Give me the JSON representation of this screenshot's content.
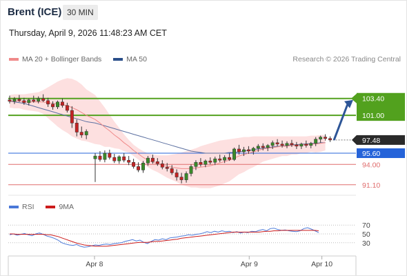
{
  "header": {
    "title": "Brent (ICE)",
    "timeframe": "30 MIN",
    "datetime": "Thursday, April 9, 2026 11:48:23 AM CET"
  },
  "legend": {
    "items": [
      {
        "label": "MA 20 + Bollinger Bands",
        "color": "#f08a8a"
      },
      {
        "label": "MA 50",
        "color": "#2b4f8a"
      }
    ],
    "credit": "Research © 2026 Trading Central"
  },
  "chart_data": {
    "type": "line",
    "price": {
      "ylim": [
        89.6,
        107.9
      ],
      "current_price": {
        "value": 97.48,
        "label": "97.48",
        "color": "#2a2a2a"
      },
      "levels": [
        {
          "value": 103.4,
          "label": "103.40",
          "kind": "resistance",
          "color": "#52a11e"
        },
        {
          "value": 101.0,
          "label": "101.00",
          "kind": "resistance",
          "color": "#52a11e"
        },
        {
          "value": 95.6,
          "label": "95.60",
          "kind": "pivot",
          "color": "#2563d9"
        },
        {
          "value": 94.0,
          "label": "94.00",
          "kind": "support",
          "color": "#e06d6d"
        },
        {
          "value": 91.1,
          "label": "91.10",
          "kind": "support",
          "color": "#e06d6d"
        }
      ],
      "candles": [
        {
          "o": 103.2,
          "h": 103.8,
          "l": 102.7,
          "c": 103.0
        },
        {
          "o": 103.0,
          "h": 103.6,
          "l": 102.6,
          "c": 103.3
        },
        {
          "o": 103.3,
          "h": 103.9,
          "l": 102.9,
          "c": 103.1
        },
        {
          "o": 103.1,
          "h": 103.5,
          "l": 102.5,
          "c": 102.8
        },
        {
          "o": 102.8,
          "h": 103.4,
          "l": 102.4,
          "c": 103.2
        },
        {
          "o": 103.2,
          "h": 103.8,
          "l": 102.8,
          "c": 103.0
        },
        {
          "o": 103.0,
          "h": 103.7,
          "l": 102.7,
          "c": 103.4
        },
        {
          "o": 103.4,
          "h": 104.0,
          "l": 102.9,
          "c": 103.1
        },
        {
          "o": 103.1,
          "h": 103.5,
          "l": 102.2,
          "c": 102.6
        },
        {
          "o": 102.6,
          "h": 103.0,
          "l": 101.8,
          "c": 102.2
        },
        {
          "o": 102.2,
          "h": 103.1,
          "l": 101.9,
          "c": 102.9
        },
        {
          "o": 102.9,
          "h": 103.4,
          "l": 102.1,
          "c": 102.4
        },
        {
          "o": 102.4,
          "h": 102.8,
          "l": 101.4,
          "c": 101.7
        },
        {
          "o": 101.7,
          "h": 102.3,
          "l": 99.2,
          "c": 99.9
        },
        {
          "o": 99.9,
          "h": 100.4,
          "l": 98.0,
          "c": 98.6
        },
        {
          "o": 98.6,
          "h": 99.4,
          "l": 97.8,
          "c": 98.2
        },
        {
          "o": 98.2,
          "h": 99.0,
          "l": 97.6,
          "c": 98.7
        },
        {
          "o": 94.8,
          "h": 95.6,
          "l": 91.5,
          "c": 95.2
        },
        {
          "o": 95.2,
          "h": 95.9,
          "l": 94.4,
          "c": 94.7
        },
        {
          "o": 94.7,
          "h": 96.0,
          "l": 94.3,
          "c": 95.6
        },
        {
          "o": 95.6,
          "h": 96.1,
          "l": 94.7,
          "c": 95.0
        },
        {
          "o": 95.0,
          "h": 95.5,
          "l": 94.2,
          "c": 94.5
        },
        {
          "o": 94.5,
          "h": 95.3,
          "l": 94.1,
          "c": 95.1
        },
        {
          "o": 95.1,
          "h": 95.6,
          "l": 94.3,
          "c": 94.6
        },
        {
          "o": 94.6,
          "h": 95.2,
          "l": 93.9,
          "c": 94.3
        },
        {
          "o": 94.3,
          "h": 94.8,
          "l": 93.4,
          "c": 93.7
        },
        {
          "o": 93.7,
          "h": 94.3,
          "l": 92.9,
          "c": 93.2
        },
        {
          "o": 93.2,
          "h": 94.5,
          "l": 92.8,
          "c": 94.2
        },
        {
          "o": 94.2,
          "h": 95.2,
          "l": 93.8,
          "c": 94.9
        },
        {
          "o": 94.9,
          "h": 95.4,
          "l": 94.1,
          "c": 94.4
        },
        {
          "o": 94.4,
          "h": 94.9,
          "l": 93.8,
          "c": 94.1
        },
        {
          "o": 94.1,
          "h": 94.6,
          "l": 93.3,
          "c": 93.6
        },
        {
          "o": 93.6,
          "h": 94.2,
          "l": 93.0,
          "c": 93.4
        },
        {
          "o": 93.4,
          "h": 93.9,
          "l": 92.5,
          "c": 92.8
        },
        {
          "o": 92.8,
          "h": 93.3,
          "l": 91.7,
          "c": 92.2
        },
        {
          "o": 92.2,
          "h": 92.8,
          "l": 91.3,
          "c": 91.8
        },
        {
          "o": 91.8,
          "h": 93.0,
          "l": 91.4,
          "c": 92.7
        },
        {
          "o": 92.7,
          "h": 94.0,
          "l": 92.3,
          "c": 93.7
        },
        {
          "o": 93.7,
          "h": 94.6,
          "l": 93.2,
          "c": 94.3
        },
        {
          "o": 94.3,
          "h": 94.9,
          "l": 93.7,
          "c": 94.0
        },
        {
          "o": 94.0,
          "h": 94.7,
          "l": 93.6,
          "c": 94.5
        },
        {
          "o": 94.5,
          "h": 95.0,
          "l": 94.0,
          "c": 94.3
        },
        {
          "o": 94.3,
          "h": 95.1,
          "l": 93.9,
          "c": 94.8
        },
        {
          "o": 94.8,
          "h": 95.4,
          "l": 94.3,
          "c": 94.6
        },
        {
          "o": 94.6,
          "h": 95.3,
          "l": 94.2,
          "c": 95.0
        },
        {
          "o": 95.0,
          "h": 95.6,
          "l": 94.5,
          "c": 94.7
        },
        {
          "o": 94.7,
          "h": 96.4,
          "l": 94.5,
          "c": 96.2
        },
        {
          "o": 96.2,
          "h": 96.8,
          "l": 95.4,
          "c": 95.8
        },
        {
          "o": 95.8,
          "h": 96.5,
          "l": 95.2,
          "c": 96.1
        },
        {
          "o": 96.1,
          "h": 96.6,
          "l": 95.5,
          "c": 95.9
        },
        {
          "o": 95.9,
          "h": 96.5,
          "l": 95.4,
          "c": 96.3
        },
        {
          "o": 96.3,
          "h": 96.9,
          "l": 95.8,
          "c": 96.6
        },
        {
          "o": 96.6,
          "h": 97.0,
          "l": 96.0,
          "c": 96.4
        },
        {
          "o": 96.4,
          "h": 96.9,
          "l": 95.9,
          "c": 96.7
        },
        {
          "o": 96.7,
          "h": 97.4,
          "l": 96.2,
          "c": 97.1
        },
        {
          "o": 97.1,
          "h": 97.6,
          "l": 96.6,
          "c": 96.9
        },
        {
          "o": 96.9,
          "h": 97.4,
          "l": 96.4,
          "c": 96.7
        },
        {
          "o": 96.7,
          "h": 97.3,
          "l": 96.3,
          "c": 97.0
        },
        {
          "o": 97.0,
          "h": 97.5,
          "l": 96.5,
          "c": 96.8
        },
        {
          "o": 96.8,
          "h": 97.2,
          "l": 96.2,
          "c": 96.6
        },
        {
          "o": 96.6,
          "h": 97.1,
          "l": 96.2,
          "c": 96.9
        },
        {
          "o": 96.9,
          "h": 97.4,
          "l": 96.4,
          "c": 96.7
        },
        {
          "o": 96.7,
          "h": 97.2,
          "l": 96.3,
          "c": 97.0
        },
        {
          "o": 97.0,
          "h": 97.9,
          "l": 96.6,
          "c": 97.6
        },
        {
          "o": 97.6,
          "h": 98.1,
          "l": 97.1,
          "c": 97.9
        },
        {
          "o": 97.9,
          "h": 98.3,
          "l": 97.4,
          "c": 97.7
        },
        {
          "o": 97.7,
          "h": 98.0,
          "l": 97.2,
          "c": 97.48
        }
      ],
      "ma20": [
        103.0,
        103.0,
        103.0,
        102.9,
        102.9,
        102.9,
        102.9,
        102.9,
        102.8,
        102.7,
        102.6,
        102.5,
        102.4,
        102.1,
        101.8,
        101.4,
        101.0,
        100.4,
        99.9,
        99.3,
        98.8,
        98.2,
        97.7,
        97.1,
        96.6,
        96.0,
        95.5,
        95.0,
        94.6,
        94.3,
        94.1,
        93.9,
        93.7,
        93.6,
        93.5,
        93.4,
        93.4,
        93.4,
        93.5,
        93.6,
        93.7,
        93.8,
        94.0,
        94.2,
        94.4,
        94.6,
        94.9,
        95.2,
        95.4,
        95.6,
        95.8,
        96.0,
        96.2,
        96.3,
        96.4,
        96.5,
        96.6,
        96.6,
        96.7,
        96.7,
        96.8,
        96.8,
        96.9,
        96.9,
        97.0,
        97.1
      ],
      "ma50": [
        103.0,
        102.9,
        102.8,
        102.7,
        102.5,
        102.3,
        102.1,
        101.9,
        101.7,
        101.5,
        101.3,
        101.1,
        100.9,
        100.7,
        100.5,
        100.3,
        100.1,
        99.9,
        99.7,
        99.5,
        99.3,
        99.1,
        98.9,
        98.7,
        98.5,
        98.3,
        98.1,
        97.9,
        97.7,
        97.5,
        97.3,
        97.1,
        96.9,
        96.7,
        96.5,
        96.3,
        96.1,
        95.9,
        95.8,
        95.7,
        95.6,
        95.6,
        95.6,
        95.6,
        95.6,
        95.7,
        95.7,
        95.8,
        95.9,
        96.0,
        96.1,
        96.2,
        96.3,
        96.4,
        96.5,
        96.6,
        96.6,
        96.7,
        96.8,
        96.8,
        96.9,
        96.9,
        97.0,
        97.0,
        97.1,
        97.1
      ],
      "bb_upper": [
        103.9,
        104.0,
        104.0,
        104.0,
        104.1,
        104.2,
        104.3,
        104.6,
        105.0,
        105.4,
        105.8,
        106.1,
        106.3,
        106.2,
        105.9,
        105.4,
        104.7,
        103.9,
        103.0,
        102.1,
        101.1,
        100.1,
        99.2,
        98.3,
        97.5,
        96.8,
        96.3,
        95.9,
        95.6,
        95.4,
        95.3,
        95.3,
        95.3,
        95.4,
        95.5,
        95.7,
        95.9,
        96.1,
        96.3,
        96.6,
        96.8,
        97.0,
        97.2,
        97.4,
        97.5,
        97.6,
        97.7,
        97.8,
        97.9,
        97.9,
        98.0,
        98.0,
        98.0,
        98.0,
        98.0,
        98.0,
        98.0,
        98.0,
        98.0,
        98.0,
        98.0,
        98.0,
        98.1,
        98.1,
        98.2,
        98.2
      ],
      "bb_lower": [
        102.1,
        102.0,
        102.0,
        101.8,
        101.7,
        101.6,
        101.5,
        101.2,
        100.6,
        100.0,
        99.4,
        98.9,
        98.5,
        98.0,
        97.7,
        97.4,
        97.3,
        96.9,
        96.8,
        96.5,
        96.5,
        96.3,
        96.2,
        95.9,
        95.7,
        95.2,
        94.7,
        94.1,
        93.6,
        93.2,
        92.9,
        92.5,
        92.1,
        91.8,
        91.5,
        91.1,
        90.9,
        90.7,
        90.7,
        90.6,
        90.6,
        90.6,
        90.8,
        91.0,
        91.3,
        91.6,
        92.1,
        92.6,
        92.9,
        93.3,
        93.6,
        94.0,
        94.4,
        94.6,
        94.8,
        95.0,
        95.2,
        95.2,
        95.4,
        95.4,
        95.6,
        95.6,
        95.8,
        95.7,
        95.8,
        96.0
      ],
      "forecast": {
        "from": 97.48,
        "to": 103.4,
        "color": "#2d5597"
      }
    },
    "rsi": {
      "legend": [
        {
          "label": "RSI",
          "color": "#4a78d8"
        },
        {
          "label": "9MA",
          "color": "#cc1b1b"
        }
      ],
      "ylim": [
        0,
        100
      ],
      "ticks": [
        70,
        50,
        30
      ],
      "ref_levels": [
        70,
        50,
        30
      ],
      "rsi": [
        48,
        50,
        47,
        49,
        51,
        48,
        46,
        50,
        52,
        49,
        45,
        43,
        40,
        36,
        30,
        27,
        25,
        24,
        26,
        22,
        20,
        21,
        23,
        25,
        24,
        26,
        27,
        26,
        28,
        29,
        30,
        33,
        35,
        37,
        34,
        36,
        31,
        28,
        33,
        37,
        36,
        39,
        37,
        41,
        42,
        43,
        45,
        46,
        48,
        47,
        49,
        50,
        52,
        55,
        53,
        56,
        54,
        57,
        55,
        56,
        53,
        55,
        52,
        54,
        53,
        56,
        55,
        58,
        60,
        57,
        62,
        63,
        60,
        58,
        59,
        57,
        56,
        55,
        57,
        62,
        64,
        61,
        57,
        53
      ],
      "ma9": [
        50,
        50,
        49,
        49,
        49,
        49,
        49,
        49,
        49,
        49,
        48,
        48,
        46,
        44,
        41,
        38,
        35,
        32,
        29,
        27,
        25,
        24,
        23,
        22,
        22,
        22,
        22,
        23,
        24,
        25,
        26,
        27,
        28,
        29,
        30,
        31,
        31,
        31,
        32,
        33,
        33,
        34,
        35,
        36,
        37,
        38,
        40,
        41,
        42,
        43,
        44,
        45,
        46,
        47,
        48,
        49,
        50,
        51,
        52,
        53,
        54,
        54,
        54,
        54,
        54,
        54,
        54,
        54,
        55,
        56,
        56,
        57,
        57,
        58,
        58,
        58,
        58,
        58,
        58,
        58,
        58,
        58,
        58,
        57
      ]
    },
    "x_ticks": [
      {
        "label": "Apr 8",
        "pos": 0.248
      },
      {
        "label": "Apr 9",
        "pos": 0.693
      },
      {
        "label": "Apr 10",
        "pos": 0.902
      }
    ]
  }
}
